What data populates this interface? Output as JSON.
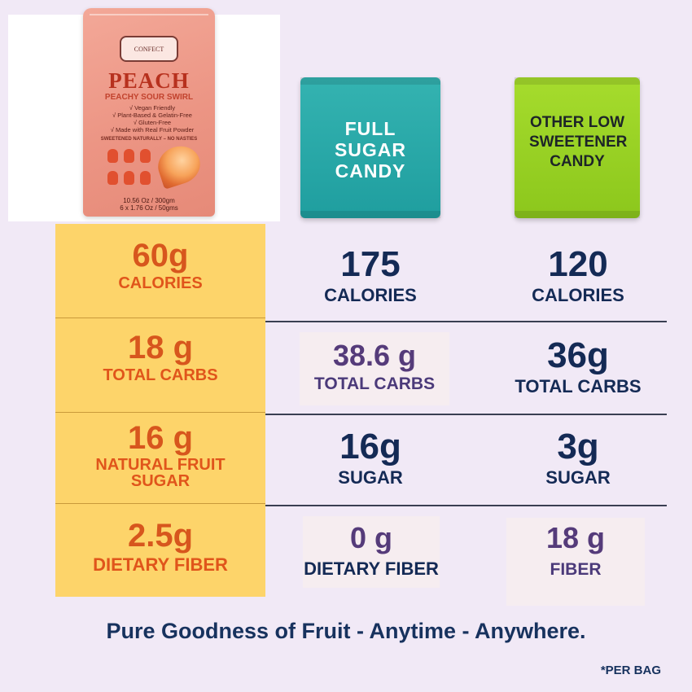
{
  "product": {
    "brand": "CONFECT",
    "name": "PEACH",
    "subtitle": "PEACHY SOUR SWIRL",
    "claims": [
      "√ Vegan Friendly",
      "√ Plant-Based & Gelatin-Free",
      "√ Gluten-Free",
      "√ Made with Real Fruit  Powder"
    ],
    "tagline": "SWEETENED NATURALLY – NO NASTIES",
    "weight_line1": "10.56 Oz / 300gm",
    "weight_line2": "6 x 1.76 Oz / 50gms"
  },
  "comparison_packs": {
    "full_sugar": {
      "label": "FULL SUGAR CANDY",
      "color": "#2aa9a8"
    },
    "other_low_sweetener": {
      "label": "OTHER LOW SWEETENER CANDY",
      "color": "#9bd426"
    }
  },
  "rows": [
    {
      "peach": {
        "value": "60g",
        "label": "CALORIES"
      },
      "full_sugar": {
        "value": "175",
        "label": "CALORIES"
      },
      "other": {
        "value": "120",
        "label": "CALORIES"
      }
    },
    {
      "peach": {
        "value": "18 g",
        "label": "TOTAL CARBS"
      },
      "full_sugar": {
        "value": "38.6 g",
        "label": "TOTAL CARBS"
      },
      "other": {
        "value": "36g",
        "label": "TOTAL CARBS"
      }
    },
    {
      "peach": {
        "value": "16 g",
        "label": "NATURAL  FRUIT SUGAR"
      },
      "full_sugar": {
        "value": "16g",
        "label": "SUGAR"
      },
      "other": {
        "value": "3g",
        "label": "SUGAR"
      }
    },
    {
      "peach": {
        "value": "2.5g",
        "label": "DIETARY FIBER"
      },
      "full_sugar": {
        "value": "0 g",
        "label": "DIETARY FIBER"
      },
      "other": {
        "value": "18 g",
        "label": "FIBER"
      }
    }
  ],
  "footer": {
    "tagline": "Pure Goodness of Fruit - Anytime - Anywhere.",
    "note": "*PER BAG"
  },
  "colors": {
    "background": "#f1e9f6",
    "peach_column": "#fdd46a",
    "peach_text": "#d7561d",
    "navy_text": "#142a55",
    "highlight_text": "#553b7a"
  }
}
